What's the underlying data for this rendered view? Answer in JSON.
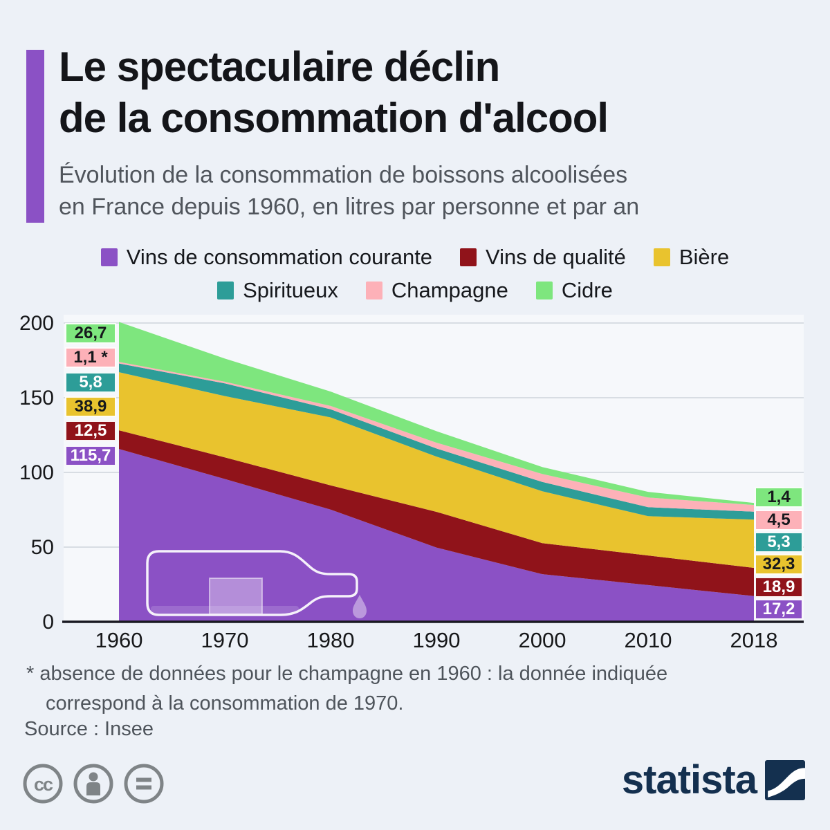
{
  "colors": {
    "accent_purple": "#8b51c5",
    "wine_red": "#90131a",
    "beer_yellow": "#e9c32e",
    "spirits_teal": "#2d9d98",
    "champagne_pink": "#fdb1b8",
    "cider_green": "#7ee67e",
    "background": "#edf1f7",
    "plot_background": "#f6f8fb",
    "gridline": "#d8dde3",
    "axis": "#1a1a22",
    "brand_navy": "#14304f",
    "license_gray": "#7f8487"
  },
  "header": {
    "title_line1": "Le spectaculaire déclin",
    "title_line2": "de la consommation d'alcool",
    "subtitle_line1": "Évolution de la consommation de boissons alcoolisées",
    "subtitle_line2": "en France depuis 1960, en litres par personne et par an"
  },
  "legend": {
    "row1": [
      {
        "label": "Vins de consommation courante",
        "color": "#8b51c5"
      },
      {
        "label": "Vins de qualité",
        "color": "#90131a"
      },
      {
        "label": "Bière",
        "color": "#e9c32e"
      }
    ],
    "row2": [
      {
        "label": "Spiritueux",
        "color": "#2d9d98"
      },
      {
        "label": "Champagne",
        "color": "#fdb1b8"
      },
      {
        "label": "Cidre",
        "color": "#7ee67e"
      }
    ]
  },
  "chart_data": {
    "type": "area",
    "stacked": true,
    "x": [
      1960,
      1970,
      1980,
      1990,
      2000,
      2010,
      2018
    ],
    "x_tick_labels": [
      "1960",
      "1970",
      "1980",
      "1990",
      "2000",
      "2010",
      "2018"
    ],
    "y_ticks": [
      0,
      50,
      100,
      150,
      200
    ],
    "ylim": [
      0,
      200
    ],
    "grid": true,
    "legend_position": "top",
    "series": [
      {
        "name": "Vins de consommation courante",
        "color": "#8b51c5",
        "values": [
          115.7,
          95.6,
          75.1,
          49.7,
          31.9,
          24.6,
          17.2
        ]
      },
      {
        "name": "Vins de qualité",
        "color": "#90131a",
        "values": [
          12.5,
          14.5,
          16.2,
          23.9,
          20.8,
          19.8,
          18.9
        ]
      },
      {
        "name": "Bière",
        "color": "#e9c32e",
        "values": [
          38.9,
          41.0,
          45.5,
          37.0,
          34.7,
          26.3,
          32.3
        ]
      },
      {
        "name": "Spiritueux",
        "color": "#2d9d98",
        "values": [
          5.8,
          8.5,
          5.4,
          5.4,
          6.2,
          6.0,
          5.3
        ]
      },
      {
        "name": "Champagne",
        "color": "#fdb1b8",
        "values": [
          1.1,
          1.1,
          2.3,
          3.9,
          5.4,
          6.5,
          4.5
        ]
      },
      {
        "name": "Cidre",
        "color": "#7ee67e",
        "values": [
          26.7,
          15.5,
          9.6,
          7.7,
          4.6,
          3.8,
          1.4
        ]
      }
    ],
    "value_labels_1960": [
      {
        "text": "26,7",
        "series": "Cidre",
        "bg": "#7ee67e",
        "fg": "#16181c"
      },
      {
        "text": "1,1 *",
        "series": "Champagne",
        "bg": "#fdb1b8",
        "fg": "#16181c"
      },
      {
        "text": "5,8",
        "series": "Spiritueux",
        "bg": "#2d9d98",
        "fg": "#ffffff"
      },
      {
        "text": "38,9",
        "series": "Bière",
        "bg": "#e9c32e",
        "fg": "#16181c"
      },
      {
        "text": "12,5",
        "series": "Vins de qualité",
        "bg": "#90131a",
        "fg": "#ffffff"
      },
      {
        "text": "115,7",
        "series": "Vins de consommation courante",
        "bg": "#8b51c5",
        "fg": "#ffffff"
      }
    ],
    "value_labels_2018": [
      {
        "text": "1,4",
        "series": "Cidre",
        "bg": "#7ee67e",
        "fg": "#16181c"
      },
      {
        "text": "4,5",
        "series": "Champagne",
        "bg": "#fdb1b8",
        "fg": "#16181c"
      },
      {
        "text": "5,3",
        "series": "Spiritueux",
        "bg": "#2d9d98",
        "fg": "#ffffff"
      },
      {
        "text": "32,3",
        "series": "Bière",
        "bg": "#e9c32e",
        "fg": "#16181c"
      },
      {
        "text": "18,9",
        "series": "Vins de qualité",
        "bg": "#90131a",
        "fg": "#ffffff"
      },
      {
        "text": "17,2",
        "series": "Vins de consommation courante",
        "bg": "#8b51c5",
        "fg": "#ffffff"
      }
    ]
  },
  "footnote": {
    "line1": "* absence de données pour le champagne en 1960 : la donnée indiquée",
    "line2": "correspond à la consommation de 1970."
  },
  "source": "Source : Insee",
  "footer": {
    "license_icons": [
      "cc-icon",
      "attribution-person-icon",
      "equals-icon"
    ],
    "cc_text": "cc",
    "brand": "statista"
  }
}
